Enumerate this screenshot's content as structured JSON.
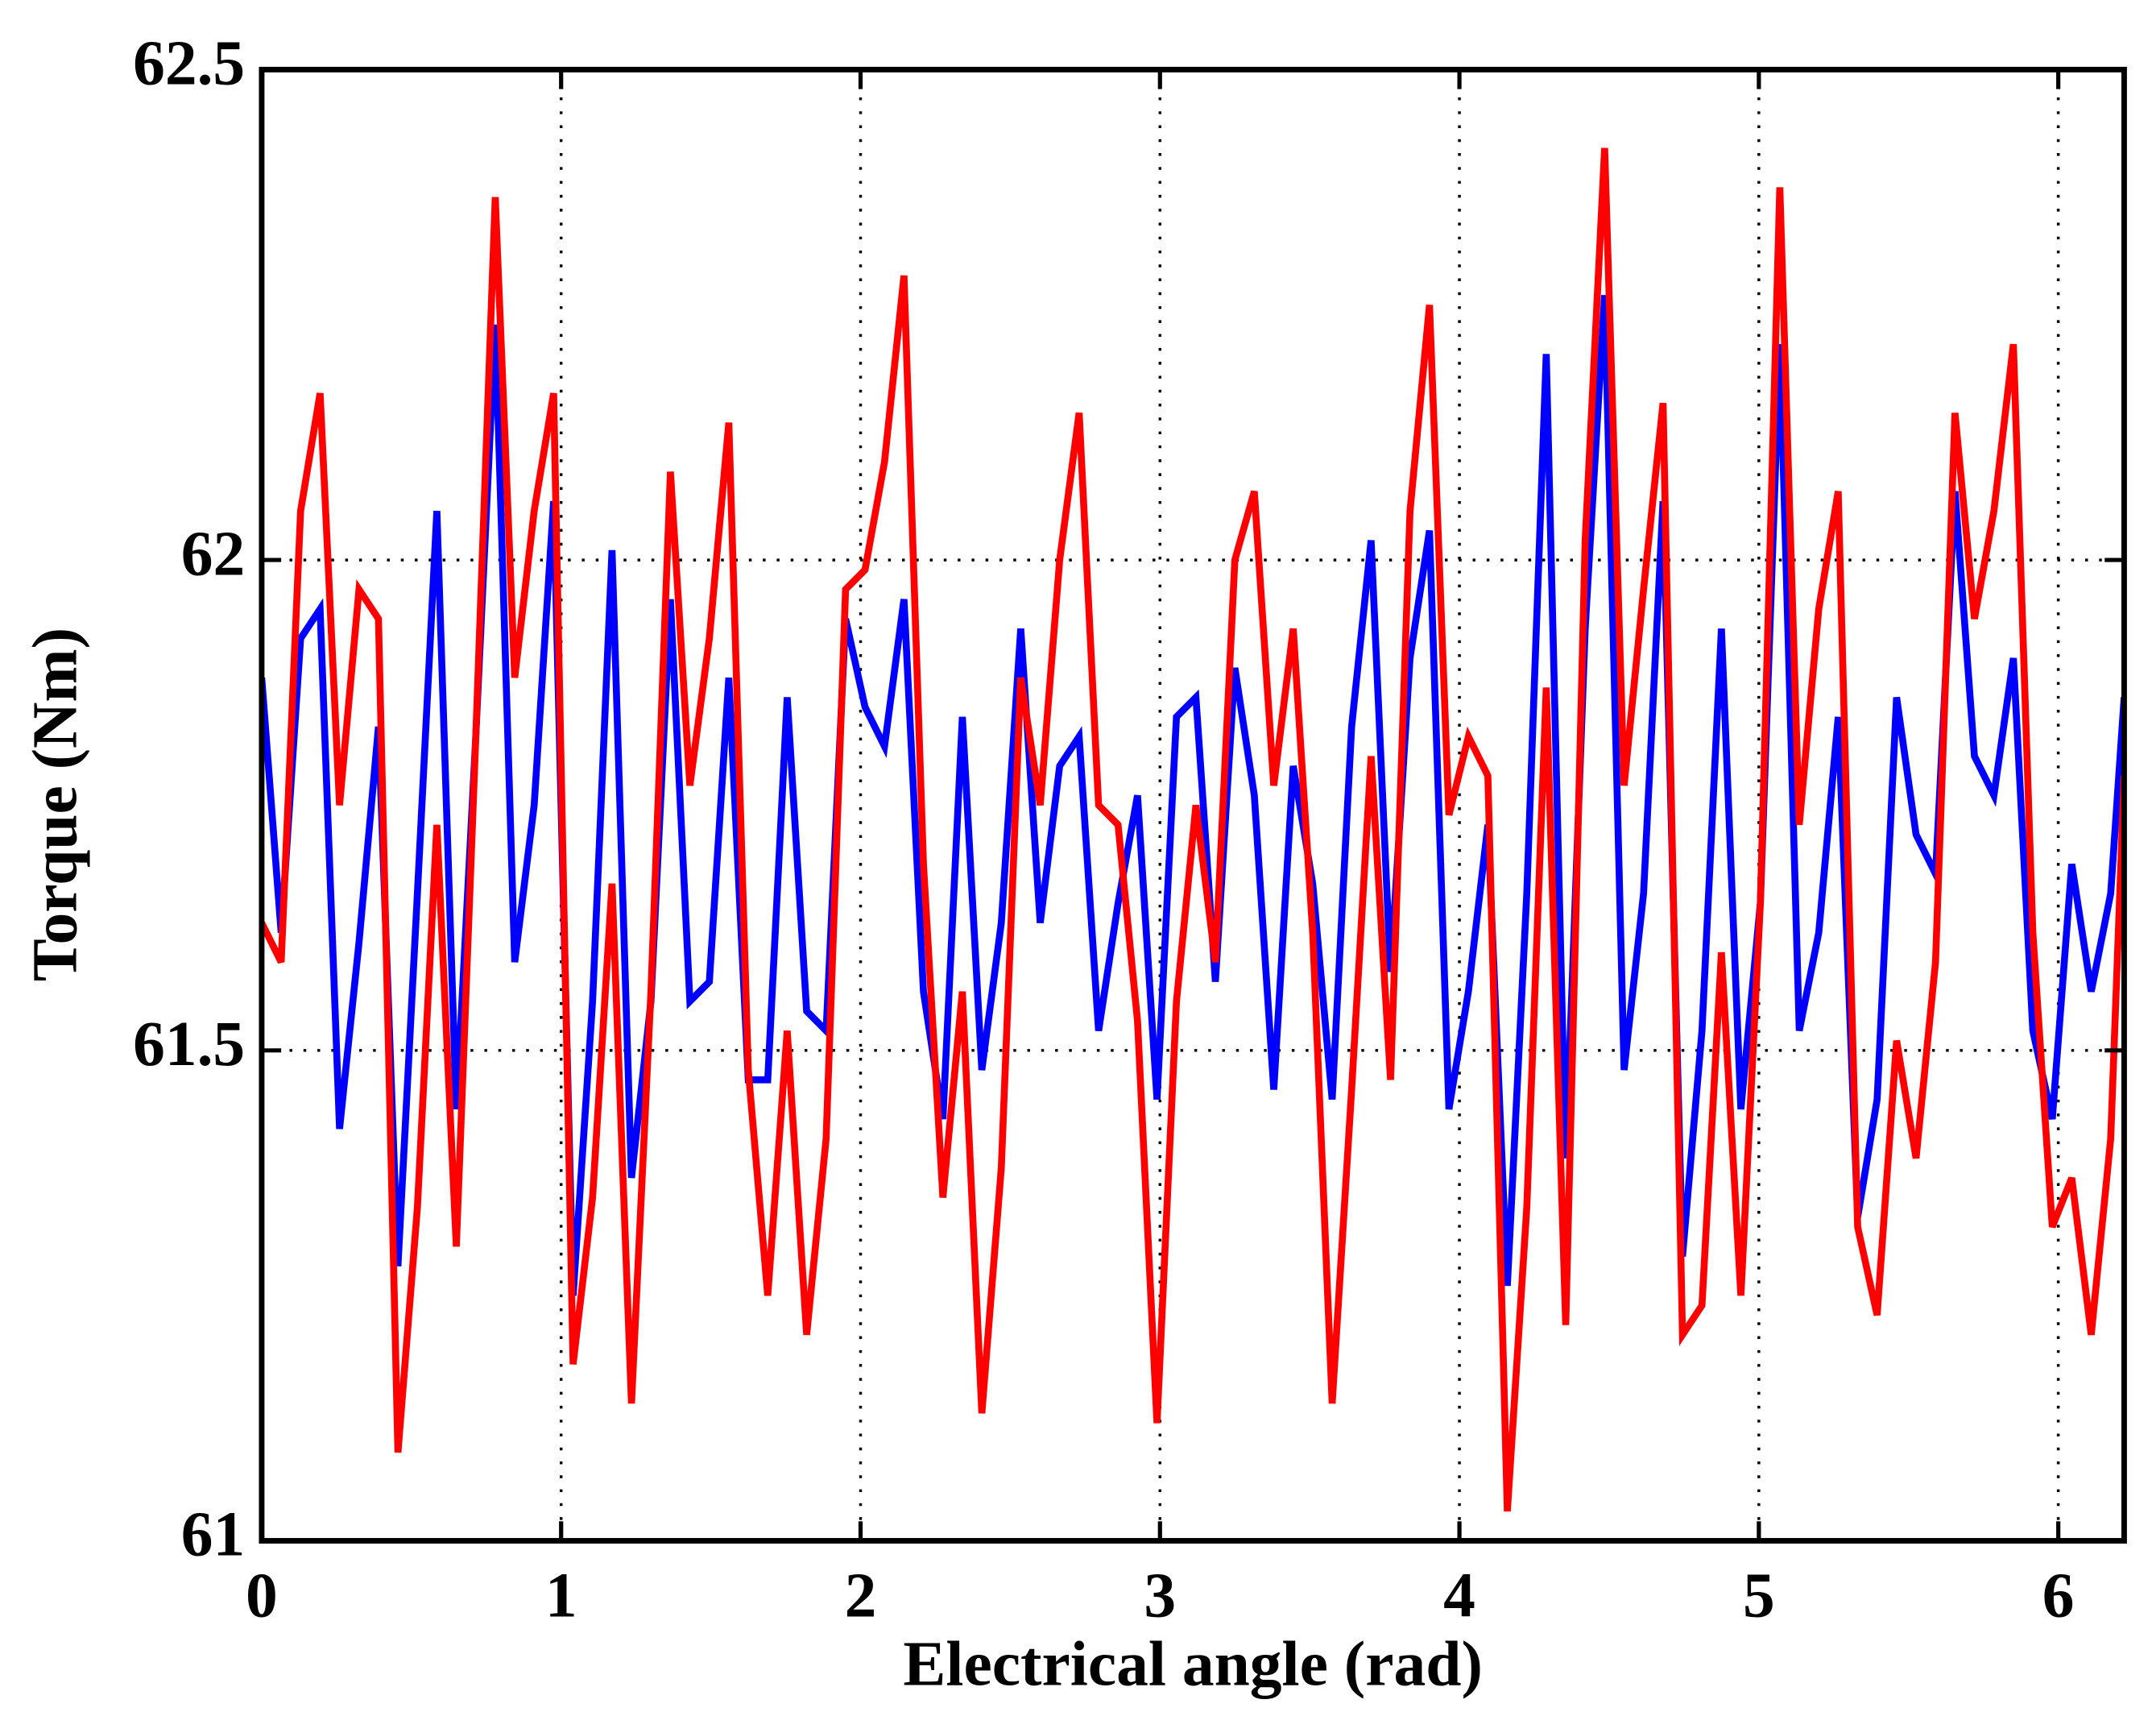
{
  "chart_data": {
    "type": "line",
    "xlabel": "Electrical angle (rad)",
    "ylabel": "Torque (Nm)",
    "x": [
      0,
      0.065,
      0.13,
      0.195,
      0.26,
      0.325,
      0.39,
      0.455,
      0.52,
      0.585,
      0.65,
      0.715,
      0.78,
      0.845,
      0.91,
      0.975,
      1.04,
      1.105,
      1.17,
      1.235,
      1.3,
      1.365,
      1.43,
      1.495,
      1.56,
      1.625,
      1.69,
      1.755,
      1.82,
      1.885,
      1.95,
      2.015,
      2.08,
      2.145,
      2.21,
      2.275,
      2.34,
      2.405,
      2.47,
      2.535,
      2.6,
      2.665,
      2.73,
      2.795,
      2.86,
      2.925,
      2.99,
      3.055,
      3.12,
      3.185,
      3.25,
      3.315,
      3.38,
      3.445,
      3.51,
      3.575,
      3.64,
      3.705,
      3.77,
      3.835,
      3.9,
      3.965,
      4.03,
      4.095,
      4.16,
      4.225,
      4.29,
      4.355,
      4.42,
      4.485,
      4.55,
      4.615,
      4.68,
      4.745,
      4.81,
      4.875,
      4.94,
      5.005,
      5.07,
      5.135,
      5.2,
      5.265,
      5.33,
      5.395,
      5.46,
      5.525,
      5.59,
      5.655,
      5.72,
      5.785,
      5.85,
      5.915,
      5.98,
      6.045,
      6.11,
      6.175,
      6.22
    ],
    "series": [
      {
        "color": "#0000ff",
        "values": [
          61.88,
          61.62,
          61.92,
          61.95,
          61.42,
          61.61,
          61.83,
          61.28,
          61.66,
          62.05,
          61.44,
          61.82,
          62.24,
          61.59,
          61.75,
          62.06,
          61.25,
          61.55,
          62.01,
          61.37,
          61.55,
          61.96,
          61.55,
          61.57,
          61.88,
          61.47,
          61.47,
          61.86,
          61.54,
          61.52,
          61.94,
          61.85,
          61.81,
          61.96,
          61.56,
          61.43,
          61.84,
          61.48,
          61.63,
          61.93,
          61.63,
          61.79,
          61.82,
          61.52,
          61.65,
          61.76,
          61.45,
          61.84,
          61.86,
          61.57,
          61.89,
          61.76,
          61.46,
          61.79,
          61.67,
          61.45,
          61.83,
          62.02,
          61.58,
          61.9,
          62.03,
          61.44,
          61.56,
          61.73,
          61.26,
          61.66,
          62.21,
          61.39,
          61.93,
          62.27,
          61.48,
          61.66,
          62.06,
          61.29,
          61.52,
          61.93,
          61.44,
          61.65,
          62.22,
          61.52,
          61.62,
          61.84,
          61.33,
          61.45,
          61.86,
          61.72,
          61.68,
          62.07,
          61.8,
          61.76,
          61.9,
          61.52,
          61.43,
          61.69,
          61.56,
          61.66,
          61.86
        ]
      },
      {
        "color": "#ff0000",
        "values": [
          61.63,
          61.59,
          62.05,
          62.17,
          61.75,
          61.97,
          61.94,
          61.09,
          61.34,
          61.73,
          61.3,
          61.82,
          62.37,
          61.88,
          62.05,
          62.17,
          61.18,
          61.35,
          61.67,
          61.14,
          61.56,
          62.09,
          61.77,
          61.92,
          62.14,
          61.48,
          61.25,
          61.52,
          61.21,
          61.41,
          61.97,
          61.99,
          62.1,
          62.29,
          61.69,
          61.35,
          61.56,
          61.13,
          61.38,
          61.88,
          61.75,
          62.0,
          62.15,
          61.75,
          61.73,
          61.53,
          61.12,
          61.55,
          61.75,
          61.59,
          62.0,
          62.07,
          61.77,
          61.93,
          61.62,
          61.14,
          61.46,
          61.8,
          61.47,
          62.05,
          62.26,
          61.74,
          61.82,
          61.78,
          61.03,
          61.34,
          61.87,
          61.22,
          62.02,
          62.42,
          61.77,
          61.97,
          62.16,
          61.21,
          61.24,
          61.6,
          61.25,
          61.65,
          62.38,
          61.73,
          61.95,
          62.07,
          61.32,
          61.23,
          61.51,
          61.39,
          61.59,
          62.15,
          61.94,
          62.05,
          62.22,
          61.62,
          61.32,
          61.37,
          61.21,
          61.41,
          61.78
        ]
      }
    ],
    "xlim": [
      0,
      6.22
    ],
    "ylim": [
      61,
      62.5
    ],
    "xticks": [
      0,
      1,
      2,
      3,
      4,
      5,
      6
    ],
    "yticks": [
      61,
      61.5,
      62,
      62.5
    ],
    "grid": true
  }
}
